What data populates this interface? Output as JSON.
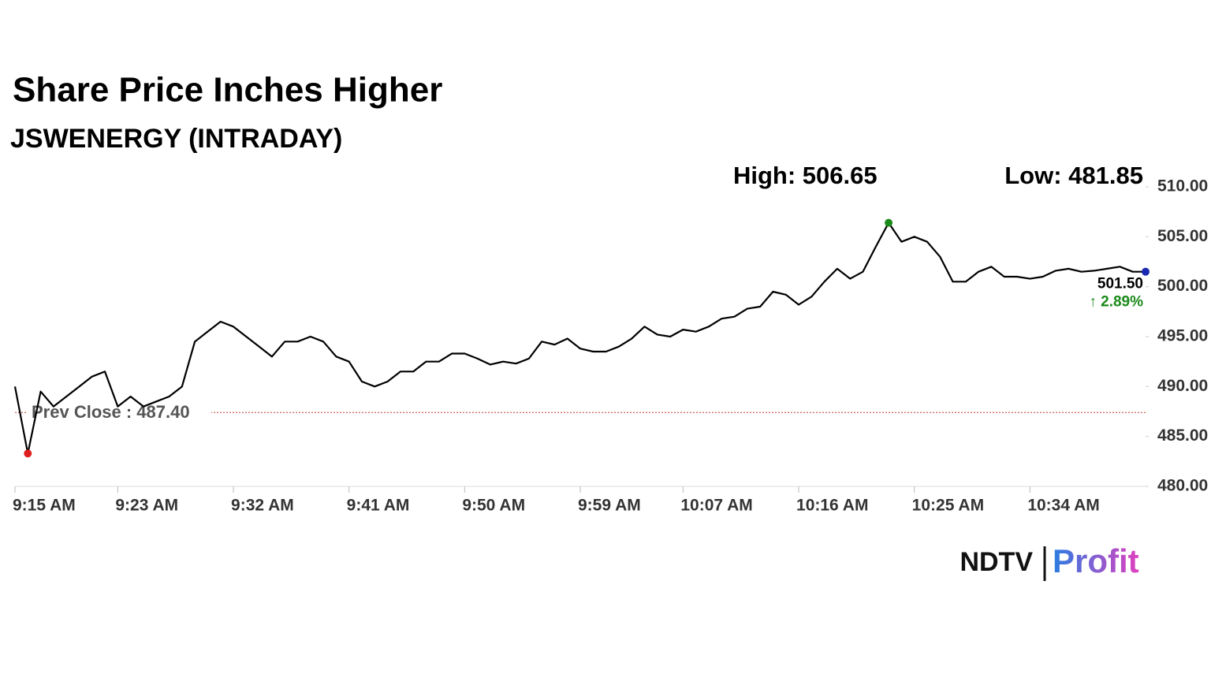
{
  "chart_data": {
    "type": "line",
    "title": "Share Price Inches Higher",
    "subtitle": "JSWENERGY (INTRADAY)",
    "high_label": "High: 506.65",
    "low_label": "Low: 481.85",
    "last_label": "501.50",
    "change_label": "↑ 2.89%",
    "prev_close": {
      "label": "Prev Close : 487.40",
      "value": 487.4,
      "color": "#c0392b"
    },
    "logo": {
      "left": "NDTV",
      "right": "Profit"
    },
    "x": [
      0,
      1,
      2,
      3,
      4,
      5,
      6,
      7,
      8,
      9,
      10,
      11,
      12,
      13,
      14,
      15,
      16,
      17,
      18,
      19,
      20,
      21,
      22,
      23,
      24,
      25,
      26,
      27,
      28,
      29,
      30,
      31,
      32,
      33,
      34,
      35,
      36,
      37,
      38,
      39,
      40,
      41,
      42,
      43,
      44,
      45,
      46,
      47,
      48,
      49,
      50,
      51,
      52,
      53,
      54,
      55,
      56,
      57,
      58,
      59,
      60,
      61,
      62,
      63,
      64,
      65,
      66,
      67,
      68,
      69,
      70,
      71,
      72,
      73,
      74,
      75,
      76,
      77,
      78,
      79,
      80,
      81,
      82,
      83,
      84,
      85,
      86,
      87,
      88
    ],
    "series": [
      {
        "color": "#000000",
        "values": [
          490.0,
          483.3,
          489.5,
          488.0,
          489.0,
          490.0,
          491.0,
          491.5,
          488.0,
          489.0,
          488.0,
          488.5,
          489.0,
          490.0,
          494.5,
          495.5,
          496.5,
          496.0,
          495.0,
          494.0,
          493.0,
          494.5,
          494.5,
          495.0,
          494.5,
          493.0,
          492.5,
          490.5,
          490.0,
          490.5,
          491.5,
          491.5,
          492.5,
          492.5,
          493.3,
          493.3,
          492.8,
          492.2,
          492.5,
          492.3,
          492.8,
          494.5,
          494.2,
          494.8,
          493.8,
          493.5,
          493.5,
          494.0,
          494.8,
          496.0,
          495.2,
          495.0,
          495.7,
          495.5,
          496.0,
          496.8,
          497.0,
          497.8,
          498.0,
          499.5,
          499.2,
          498.2,
          499.0,
          500.5,
          501.8,
          500.8,
          501.5,
          504.0,
          506.4,
          504.5,
          505.0,
          504.5,
          503.0,
          500.5,
          500.5,
          501.5,
          502.0,
          501.0,
          501.0,
          500.8,
          501.0,
          501.6,
          501.8,
          501.5,
          501.6,
          501.8,
          502.0,
          501.5,
          501.5
        ]
      }
    ],
    "high_color": "#1a8a1a",
    "low_color": "#e02020",
    "last_color": "#1a2ab0",
    "change_color": "#1a8a1a",
    "xlim": [
      0,
      88
    ],
    "xticks": [
      {
        "value": 0,
        "label": "9:15 AM"
      },
      {
        "value": 8,
        "label": "9:23 AM"
      },
      {
        "value": 17,
        "label": "9:32 AM"
      },
      {
        "value": 26,
        "label": "9:41 AM"
      },
      {
        "value": 35,
        "label": "9:50 AM"
      },
      {
        "value": 44,
        "label": "9:59 AM"
      },
      {
        "value": 52,
        "label": "10:07 AM"
      },
      {
        "value": 61,
        "label": "10:16 AM"
      },
      {
        "value": 70,
        "label": "10:25 AM"
      },
      {
        "value": 79,
        "label": "10:34 AM"
      }
    ],
    "ylim": [
      480,
      510
    ],
    "yticks": [
      {
        "value": 480,
        "label": "480.00"
      },
      {
        "value": 485,
        "label": "485.00"
      },
      {
        "value": 490,
        "label": "490.00"
      },
      {
        "value": 495,
        "label": "495.00"
      },
      {
        "value": 500,
        "label": "500.00"
      },
      {
        "value": 505,
        "label": "505.00"
      },
      {
        "value": 510,
        "label": "510.00"
      }
    ]
  }
}
